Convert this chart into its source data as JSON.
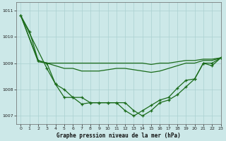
{
  "title": "Graphe pression niveau de la mer (hPa)",
  "background_color": "#cce8e8",
  "grid_color": "#aad0d0",
  "line_color": "#1a6b1a",
  "xlim": [
    -0.5,
    23
  ],
  "ylim": [
    1006.7,
    1011.3
  ],
  "yticks": [
    1007,
    1008,
    1009,
    1010,
    1011
  ],
  "xticks": [
    0,
    1,
    2,
    3,
    4,
    5,
    6,
    7,
    8,
    9,
    10,
    11,
    12,
    13,
    14,
    15,
    16,
    17,
    18,
    19,
    20,
    21,
    22,
    23
  ],
  "series": {
    "line1_x": [
      0,
      1,
      2,
      3,
      4,
      5,
      6,
      7,
      8,
      9,
      10,
      11,
      12,
      13,
      14,
      15,
      16,
      17,
      18,
      19,
      20,
      21,
      22,
      23
    ],
    "line1_y": [
      1010.8,
      1010.2,
      1009.1,
      1009.0,
      1008.2,
      1008.0,
      1007.7,
      1007.7,
      1007.5,
      1007.5,
      1007.5,
      1007.5,
      1007.5,
      1007.2,
      1007.0,
      1007.2,
      1007.5,
      1007.6,
      1007.8,
      1008.1,
      1008.4,
      1009.0,
      1008.9,
      1009.2
    ],
    "line2_x": [
      0,
      2,
      3,
      4,
      5,
      6,
      7,
      8,
      9,
      10,
      11,
      12,
      13,
      14,
      15,
      16,
      17,
      18,
      19,
      20,
      21,
      22,
      23
    ],
    "line2_y": [
      1010.8,
      1009.1,
      1009.0,
      1008.9,
      1008.8,
      1008.8,
      1008.7,
      1008.7,
      1008.7,
      1008.75,
      1008.8,
      1008.8,
      1008.75,
      1008.7,
      1008.65,
      1008.7,
      1008.8,
      1008.9,
      1009.0,
      1009.0,
      1009.1,
      1009.1,
      1009.2
    ],
    "line3_x": [
      0,
      2,
      3,
      4,
      5,
      6,
      7,
      8,
      9,
      10,
      11,
      12,
      13,
      14,
      15,
      16,
      17,
      18,
      19,
      20,
      21,
      22,
      23
    ],
    "line3_y": [
      1010.8,
      1009.05,
      1009.0,
      1009.0,
      1009.0,
      1009.0,
      1009.0,
      1009.0,
      1009.0,
      1009.0,
      1009.0,
      1009.0,
      1009.0,
      1009.0,
      1008.95,
      1009.0,
      1009.0,
      1009.05,
      1009.1,
      1009.1,
      1009.15,
      1009.15,
      1009.2
    ],
    "line4_x": [
      0,
      3,
      4,
      5,
      6,
      7,
      8,
      9,
      10,
      11,
      12,
      13,
      14,
      15,
      16,
      17,
      18,
      19,
      20,
      21,
      22,
      23
    ],
    "line4_y": [
      1010.8,
      1008.8,
      1008.2,
      1007.7,
      1007.7,
      1007.45,
      1007.5,
      1007.5,
      1007.5,
      1007.5,
      1007.2,
      1007.0,
      1007.2,
      1007.4,
      1007.6,
      1007.7,
      1008.05,
      1008.35,
      1008.4,
      1009.0,
      1009.0,
      1009.2
    ]
  },
  "figsize": [
    3.2,
    2.0
  ],
  "dpi": 100
}
